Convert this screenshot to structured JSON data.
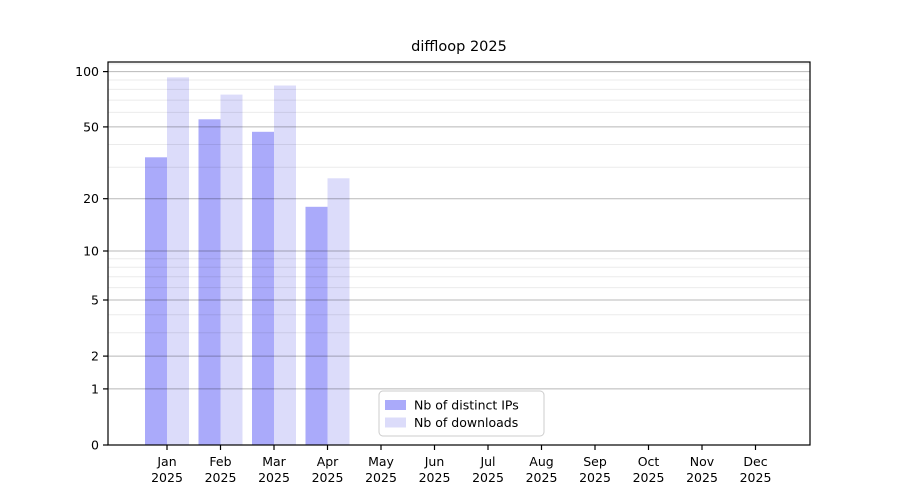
{
  "chart_data": {
    "type": "bar",
    "title": "diffloop 2025",
    "x_year": "2025",
    "categories": [
      "Jan",
      "Feb",
      "Mar",
      "Apr",
      "May",
      "Jun",
      "Jul",
      "Aug",
      "Sep",
      "Oct",
      "Nov",
      "Dec"
    ],
    "series": [
      {
        "name": "Nb of distinct IPs",
        "color": "#aaaafa",
        "values": [
          34,
          55,
          47,
          18,
          0,
          0,
          0,
          0,
          0,
          0,
          0,
          0
        ]
      },
      {
        "name": "Nb of downloads",
        "color": "#dcdcfa",
        "values": [
          93,
          75,
          84,
          26,
          0,
          0,
          0,
          0,
          0,
          0,
          0,
          0
        ]
      }
    ],
    "y_scale": "log10(value+1)",
    "y_ticks": [
      0,
      1,
      2,
      5,
      10,
      20,
      50,
      100
    ],
    "ylim": [
      0,
      112.7
    ],
    "y_axis_top": 112.7,
    "grid": {
      "major": [
        1,
        2,
        5,
        10,
        20,
        50,
        100
      ],
      "minor": [
        3,
        4,
        6,
        7,
        8,
        9,
        30,
        40,
        60,
        70,
        80,
        90,
        110
      ]
    },
    "grid_on": true,
    "legend": {
      "position": "inside-bottom-center",
      "entries": [
        "Nb of distinct IPs",
        "Nb of downloads"
      ]
    },
    "colors": {
      "bar_ips": "#aaaafa",
      "bar_downloads": "#dcdcfa",
      "grid_minor": "rgba(0,0,0,0.08)",
      "grid_major": "rgba(0,0,0,0.28)",
      "frame": "#000000",
      "legend_border": "#cccccc"
    }
  }
}
